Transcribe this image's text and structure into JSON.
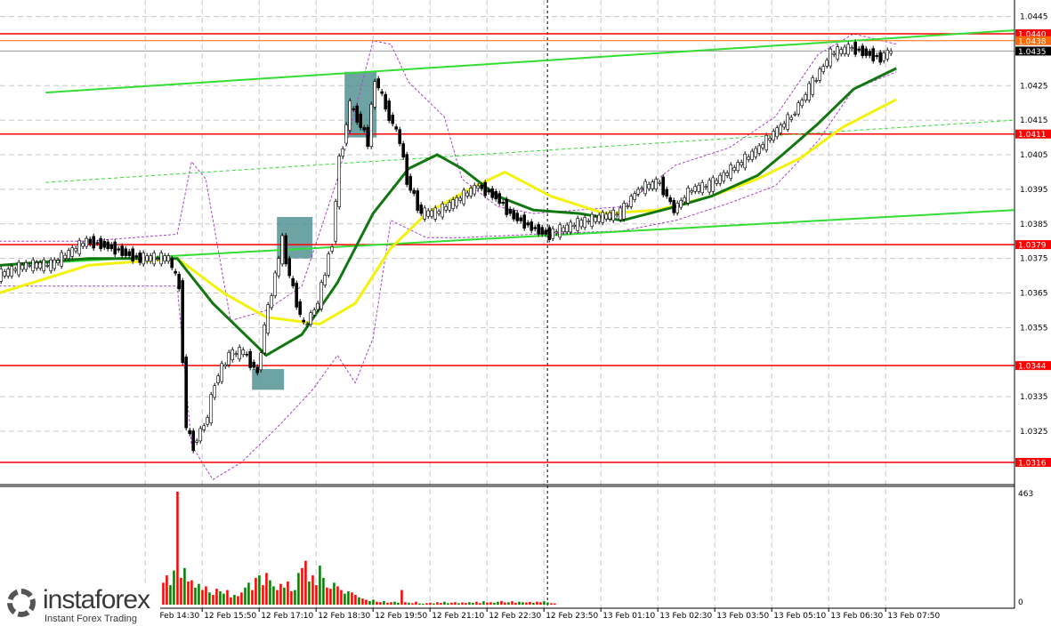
{
  "chart_data": {
    "type": "candlestick",
    "price_ticks": [
      "1.0445",
      "1.0425",
      "1.0415",
      "1.0405",
      "1.0395",
      "1.0385",
      "1.0375",
      "1.0365",
      "1.0355",
      "1.0335",
      "1.0325"
    ],
    "time_ticks": [
      "12 Feb 14:30",
      "12 Feb 15:50",
      "12 Feb 17:10",
      "12 Feb 18:30",
      "12 Feb 19:50",
      "12 Feb 21:10",
      "12 Feb 22:30",
      "12 Feb 23:50",
      "13 Feb 01:10",
      "13 Feb 02:30",
      "13 Feb 03:50",
      "13 Feb 05:10",
      "13 Feb 06:30",
      "13 Feb 07:50"
    ],
    "levels": [
      {
        "price": "1.0440",
        "color": "#ff0000"
      },
      {
        "price": "1.0411",
        "color": "#ff0000"
      },
      {
        "price": "1.0379",
        "color": "#ff0000"
      },
      {
        "price": "1.0344",
        "color": "#ff0000"
      },
      {
        "price": "1.0316",
        "color": "#ff0000"
      },
      {
        "price": "1.0438",
        "color": "#ff6600"
      },
      {
        "price": "1.0435",
        "color": "#000000"
      }
    ],
    "trendlines": [
      {
        "from": [
          "12 Feb 12:10",
          1.0423
        ],
        "to": [
          "13 Feb 10:50",
          1.0441
        ],
        "color": "#33dd33",
        "style": "solid"
      },
      {
        "from": [
          "12 Feb 11:05",
          1.0373
        ],
        "to": [
          "13 Feb 10:50",
          1.0389
        ],
        "color": "#33dd33",
        "style": "solid"
      },
      {
        "from": [
          "12 Feb 12:10",
          1.0397
        ],
        "to": [
          "13 Feb 10:50",
          1.0415
        ],
        "color": "#33dd33",
        "style": "dashed"
      }
    ],
    "separator": "12 Feb 23:55",
    "zones": [
      {
        "t1": "12 Feb 19:10",
        "t2": "12 Feb 19:55",
        "p1": 1.0429,
        "p2": 1.041
      },
      {
        "t1": "12 Feb 17:35",
        "t2": "12 Feb 18:25",
        "p1": 1.0387,
        "p2": 1.0375
      },
      {
        "t1": "12 Feb 17:00",
        "t2": "12 Feb 17:45",
        "p1": 1.0343,
        "p2": 1.0337
      }
    ],
    "price": [
      [
        "12 Feb 11:05",
        1.037
      ],
      [
        "12 Feb 11:45",
        1.0373
      ],
      [
        "12 Feb 12:20",
        1.0373
      ],
      [
        "12 Feb 13:10",
        1.038
      ],
      [
        "12 Feb 13:35",
        1.0379
      ],
      [
        "12 Feb 14:25",
        1.0375
      ],
      [
        "12 Feb 15:05",
        1.0375
      ],
      [
        "12 Feb 15:20",
        1.0367
      ],
      [
        "12 Feb 15:30",
        1.0326
      ],
      [
        "12 Feb 15:40",
        1.0321
      ],
      [
        "12 Feb 16:00",
        1.0329
      ],
      [
        "12 Feb 16:10",
        1.0339
      ],
      [
        "12 Feb 16:30",
        1.0347
      ],
      [
        "12 Feb 16:50",
        1.0348
      ],
      [
        "12 Feb 17:10",
        1.0342
      ],
      [
        "12 Feb 17:20",
        1.0355
      ],
      [
        "12 Feb 17:35",
        1.037
      ],
      [
        "12 Feb 17:45",
        1.038
      ],
      [
        "12 Feb 17:55",
        1.037
      ],
      [
        "12 Feb 18:15",
        1.0355
      ],
      [
        "12 Feb 18:35",
        1.0362
      ],
      [
        "12 Feb 18:55",
        1.038
      ],
      [
        "12 Feb 19:05",
        1.0403
      ],
      [
        "12 Feb 19:20",
        1.0419
      ],
      [
        "12 Feb 19:30",
        1.0416
      ],
      [
        "12 Feb 19:45",
        1.0409
      ],
      [
        "12 Feb 19:55",
        1.0427
      ],
      [
        "12 Feb 20:10",
        1.0419
      ],
      [
        "12 Feb 20:30",
        1.0409
      ],
      [
        "12 Feb 20:40",
        1.0398
      ],
      [
        "12 Feb 21:00",
        1.0388
      ],
      [
        "12 Feb 21:20",
        1.0388
      ],
      [
        "12 Feb 21:45",
        1.0391
      ],
      [
        "12 Feb 22:20",
        1.0396
      ],
      [
        "12 Feb 22:45",
        1.0393
      ],
      [
        "12 Feb 23:05",
        1.0388
      ],
      [
        "12 Feb 23:35",
        1.0384
      ],
      [
        "13 Feb 00:00",
        1.0382
      ],
      [
        "13 Feb 00:40",
        1.0385
      ],
      [
        "13 Feb 01:15",
        1.0387
      ],
      [
        "13 Feb 01:40",
        1.0388
      ],
      [
        "13 Feb 02:05",
        1.0395
      ],
      [
        "13 Feb 02:35",
        1.0397
      ],
      [
        "13 Feb 02:55",
        1.0389
      ],
      [
        "13 Feb 03:20",
        1.0395
      ],
      [
        "13 Feb 03:45",
        1.0396
      ],
      [
        "13 Feb 04:25",
        1.0402
      ],
      [
        "13 Feb 04:50",
        1.0406
      ],
      [
        "13 Feb 05:15",
        1.0411
      ],
      [
        "13 Feb 05:40",
        1.0416
      ],
      [
        "13 Feb 06:05",
        1.0424
      ],
      [
        "13 Feb 06:35",
        1.0434
      ],
      [
        "13 Feb 07:05",
        1.0436
      ],
      [
        "13 Feb 07:45",
        1.0433
      ],
      [
        "13 Feb 08:00",
        1.0435
      ]
    ],
    "ma_fast": {
      "color": "#117711",
      "points": [
        [
          "12 Feb 11:05",
          1.0373
        ],
        [
          "12 Feb 13:10",
          1.0375
        ],
        [
          "12 Feb 15:15",
          1.0375
        ],
        [
          "12 Feb 16:05",
          1.0362
        ],
        [
          "12 Feb 17:20",
          1.0347
        ],
        [
          "12 Feb 18:10",
          1.0353
        ],
        [
          "12 Feb 19:00",
          1.0368
        ],
        [
          "12 Feb 19:50",
          1.0388
        ],
        [
          "12 Feb 20:40",
          1.0401
        ],
        [
          "12 Feb 21:20",
          1.0405
        ],
        [
          "12 Feb 21:55",
          1.0401
        ],
        [
          "12 Feb 22:45",
          1.0393
        ],
        [
          "12 Feb 23:35",
          1.0389
        ],
        [
          "13 Feb 00:40",
          1.0388
        ],
        [
          "13 Feb 01:40",
          1.0386
        ],
        [
          "13 Feb 02:55",
          1.039
        ],
        [
          "13 Feb 03:45",
          1.0393
        ],
        [
          "13 Feb 04:50",
          1.0399
        ],
        [
          "13 Feb 05:25",
          1.0405
        ],
        [
          "13 Feb 06:15",
          1.0414
        ],
        [
          "13 Feb 07:05",
          1.0424
        ],
        [
          "13 Feb 08:05",
          1.043
        ]
      ]
    },
    "ma_slow": {
      "color": "#f2f20a",
      "points": [
        [
          "12 Feb 11:05",
          1.0365
        ],
        [
          "12 Feb 13:10",
          1.0373
        ],
        [
          "12 Feb 15:15",
          1.0375
        ],
        [
          "12 Feb 16:20",
          1.0365
        ],
        [
          "12 Feb 17:20",
          1.0358
        ],
        [
          "12 Feb 18:35",
          1.0356
        ],
        [
          "12 Feb 19:25",
          1.0362
        ],
        [
          "12 Feb 20:15",
          1.0378
        ],
        [
          "12 Feb 21:05",
          1.0388
        ],
        [
          "12 Feb 22:05",
          1.0395
        ],
        [
          "12 Feb 22:55",
          1.04
        ],
        [
          "13 Feb 00:00",
          1.0393
        ],
        [
          "13 Feb 01:15",
          1.0388
        ],
        [
          "13 Feb 02:30",
          1.0389
        ],
        [
          "13 Feb 03:45",
          1.0393
        ],
        [
          "13 Feb 04:50",
          1.0398
        ],
        [
          "13 Feb 05:50",
          1.0404
        ],
        [
          "13 Feb 06:50",
          1.0413
        ],
        [
          "13 Feb 08:05",
          1.0421
        ]
      ]
    },
    "band_upper": {
      "color": "#aa44cc",
      "points": [
        [
          "12 Feb 11:05",
          1.038
        ],
        [
          "12 Feb 13:10",
          1.038
        ],
        [
          "12 Feb 15:15",
          1.0382
        ],
        [
          "12 Feb 15:35",
          1.0403
        ],
        [
          "12 Feb 15:55",
          1.0398
        ],
        [
          "12 Feb 16:30",
          1.0357
        ],
        [
          "12 Feb 17:20",
          1.036
        ],
        [
          "12 Feb 18:10",
          1.0367
        ],
        [
          "12 Feb 19:00",
          1.0398
        ],
        [
          "12 Feb 19:50",
          1.0438
        ],
        [
          "12 Feb 20:15",
          1.0437
        ],
        [
          "12 Feb 20:40",
          1.0426
        ],
        [
          "12 Feb 21:30",
          1.0416
        ],
        [
          "12 Feb 21:55",
          1.0398
        ],
        [
          "12 Feb 22:45",
          1.039
        ],
        [
          "12 Feb 23:35",
          1.0388
        ],
        [
          "13 Feb 01:40",
          1.039
        ],
        [
          "13 Feb 02:55",
          1.0402
        ],
        [
          "13 Feb 04:10",
          1.0407
        ],
        [
          "13 Feb 05:15",
          1.0416
        ],
        [
          "13 Feb 06:15",
          1.0434
        ],
        [
          "13 Feb 07:05",
          1.044
        ],
        [
          "13 Feb 08:05",
          1.0437
        ]
      ]
    },
    "band_lower": {
      "color": "#aa44cc",
      "points": [
        [
          "12 Feb 11:05",
          1.0367
        ],
        [
          "12 Feb 14:15",
          1.0367
        ],
        [
          "12 Feb 15:15",
          1.0367
        ],
        [
          "12 Feb 15:35",
          1.0321
        ],
        [
          "12 Feb 16:05",
          1.0311
        ],
        [
          "12 Feb 16:45",
          1.0316
        ],
        [
          "12 Feb 17:35",
          1.0326
        ],
        [
          "12 Feb 18:25",
          1.0337
        ],
        [
          "12 Feb 19:00",
          1.0347
        ],
        [
          "12 Feb 19:25",
          1.0339
        ],
        [
          "12 Feb 19:50",
          1.0352
        ],
        [
          "12 Feb 20:15",
          1.0386
        ],
        [
          "12 Feb 21:05",
          1.0381
        ],
        [
          "12 Feb 21:55",
          1.0381
        ],
        [
          "12 Feb 23:35",
          1.0382
        ],
        [
          "13 Feb 01:40",
          1.0383
        ],
        [
          "13 Feb 02:55",
          1.0386
        ],
        [
          "13 Feb 04:10",
          1.0391
        ],
        [
          "13 Feb 05:15",
          1.0396
        ],
        [
          "13 Feb 06:15",
          1.0409
        ],
        [
          "13 Feb 07:05",
          1.0424
        ],
        [
          "13 Feb 08:05",
          1.0429
        ]
      ]
    },
    "volume": {
      "max_label": "463",
      "zero_label": "0",
      "start": "12 Feb 14:55",
      "step_minutes": 5,
      "values": [
        90,
        120,
        80,
        140,
        463,
        110,
        150,
        95,
        100,
        70,
        85,
        60,
        75,
        50,
        40,
        65,
        55,
        45,
        60,
        30,
        40,
        35,
        50,
        70,
        90,
        60,
        110,
        120,
        80,
        130,
        100,
        75,
        60,
        85,
        70,
        95,
        55,
        60,
        130,
        150,
        180,
        95,
        120,
        80,
        160,
        110,
        70,
        65,
        90,
        75,
        60,
        45,
        55,
        50,
        40,
        30,
        25,
        20,
        15,
        20,
        12,
        10,
        15,
        8,
        10,
        12,
        8,
        60,
        10,
        8,
        6,
        12,
        5,
        4,
        6,
        8,
        5,
        10,
        7,
        12,
        6,
        8,
        10,
        6,
        9,
        7,
        10,
        8,
        12,
        6,
        14,
        9,
        10,
        8,
        12,
        15,
        9,
        10,
        14,
        8,
        12,
        10,
        9,
        11,
        8,
        12,
        10,
        14,
        9,
        6,
        5
      ]
    }
  },
  "logo": {
    "brand": "instaforex",
    "tagline": "Instant Forex Trading"
  }
}
